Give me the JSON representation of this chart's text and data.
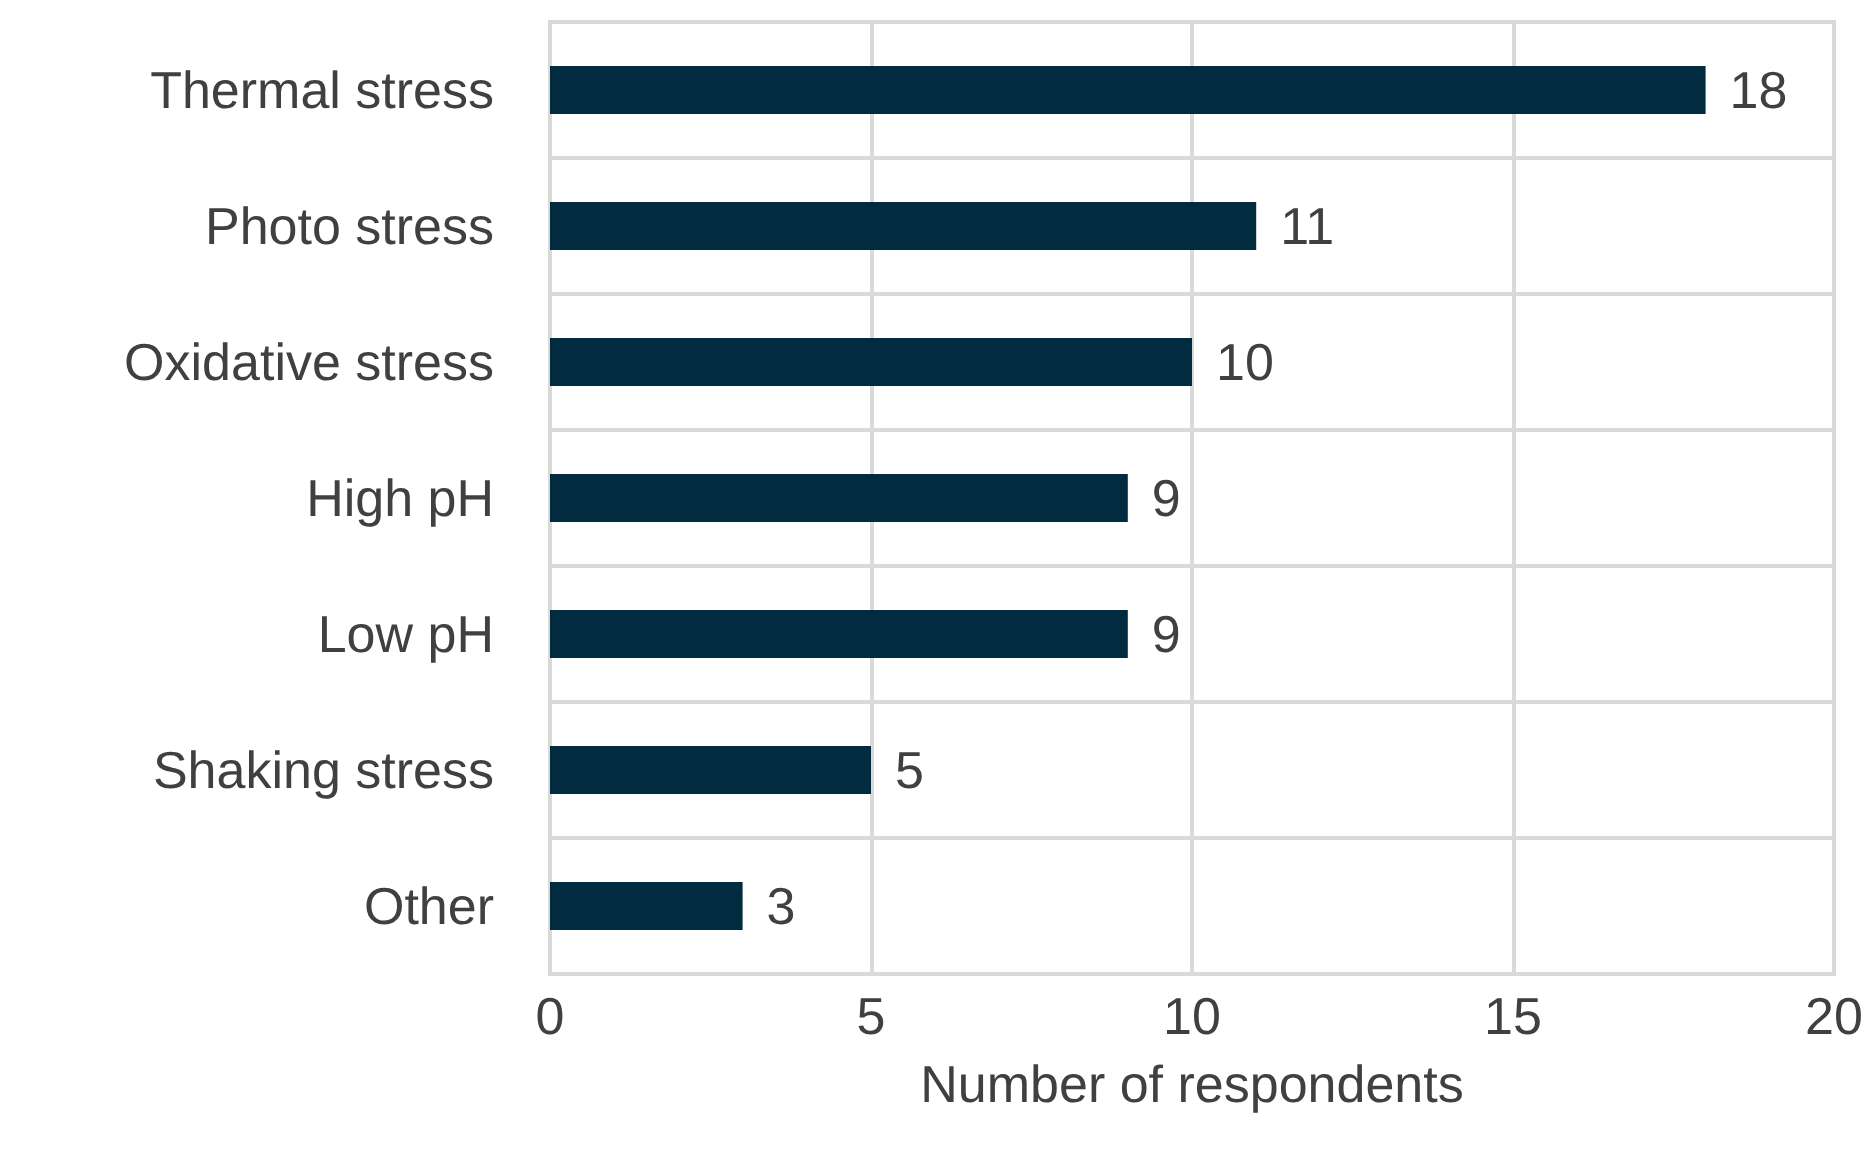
{
  "chart_data": {
    "type": "bar",
    "orientation": "horizontal",
    "xlabel": "Number of respondents",
    "categories": [
      "Thermal stress",
      "Photo stress",
      "Oxidative stress",
      "High pH",
      "Low pH",
      "Shaking stress",
      "Other"
    ],
    "values": [
      18,
      11,
      10,
      9,
      9,
      5,
      3
    ],
    "color": "#032b40",
    "xlim": [
      0,
      20
    ],
    "xticks": [
      0,
      5,
      10,
      15,
      20
    ],
    "grid": true,
    "data_labels": true
  }
}
